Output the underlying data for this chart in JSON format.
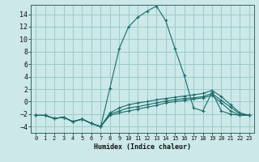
{
  "title": "",
  "xlabel": "Humidex (Indice chaleur)",
  "bg_color": "#cce8e8",
  "grid_color": "#99cccc",
  "line_color": "#1a6b6b",
  "xlim": [
    -0.5,
    23.5
  ],
  "ylim": [
    -5,
    15.5
  ],
  "yticks": [
    -4,
    -2,
    0,
    2,
    4,
    6,
    8,
    10,
    12,
    14
  ],
  "xticks": [
    0,
    1,
    2,
    3,
    4,
    5,
    6,
    7,
    8,
    9,
    10,
    11,
    12,
    13,
    14,
    15,
    16,
    17,
    18,
    19,
    20,
    21,
    22,
    23
  ],
  "lines": [
    {
      "x": [
        0,
        1,
        2,
        3,
        4,
        5,
        6,
        7,
        8,
        9,
        10,
        11,
        12,
        13,
        14,
        15,
        16,
        17,
        18,
        19,
        20,
        21,
        22,
        23
      ],
      "y": [
        -2.2,
        -2.2,
        -2.7,
        -2.5,
        -3.2,
        -2.8,
        -3.5,
        -4.0,
        2.2,
        8.5,
        12.0,
        13.5,
        14.5,
        15.3,
        13.0,
        8.5,
        4.2,
        -1.0,
        -1.5,
        1.5,
        -1.5,
        -2.0,
        -2.2,
        -2.2
      ]
    },
    {
      "x": [
        0,
        1,
        2,
        3,
        4,
        5,
        6,
        7,
        8,
        9,
        10,
        11,
        12,
        13,
        14,
        15,
        16,
        17,
        18,
        19,
        20,
        21,
        22,
        23
      ],
      "y": [
        -2.2,
        -2.2,
        -2.7,
        -2.5,
        -3.2,
        -2.8,
        -3.5,
        -4.0,
        -1.8,
        -1.0,
        -0.5,
        -0.2,
        0.0,
        0.3,
        0.5,
        0.7,
        0.9,
        1.1,
        1.3,
        1.8,
        0.8,
        -0.5,
        -1.8,
        -2.2
      ]
    },
    {
      "x": [
        0,
        1,
        2,
        3,
        4,
        5,
        6,
        7,
        8,
        9,
        10,
        11,
        12,
        13,
        14,
        15,
        16,
        17,
        18,
        19,
        20,
        21,
        22,
        23
      ],
      "y": [
        -2.2,
        -2.2,
        -2.7,
        -2.5,
        -3.2,
        -2.8,
        -3.5,
        -4.0,
        -2.0,
        -1.5,
        -1.0,
        -0.8,
        -0.5,
        -0.2,
        0.1,
        0.3,
        0.5,
        0.6,
        0.8,
        1.3,
        0.2,
        -0.9,
        -2.0,
        -2.2
      ]
    },
    {
      "x": [
        0,
        1,
        2,
        3,
        4,
        5,
        6,
        7,
        8,
        9,
        10,
        11,
        12,
        13,
        14,
        15,
        16,
        17,
        18,
        19,
        20,
        21,
        22,
        23
      ],
      "y": [
        -2.2,
        -2.2,
        -2.7,
        -2.5,
        -3.2,
        -2.8,
        -3.5,
        -4.0,
        -2.2,
        -1.8,
        -1.5,
        -1.2,
        -0.9,
        -0.6,
        -0.2,
        0.0,
        0.2,
        0.4,
        0.6,
        1.0,
        -0.2,
        -1.5,
        -2.2,
        -2.2
      ]
    }
  ]
}
